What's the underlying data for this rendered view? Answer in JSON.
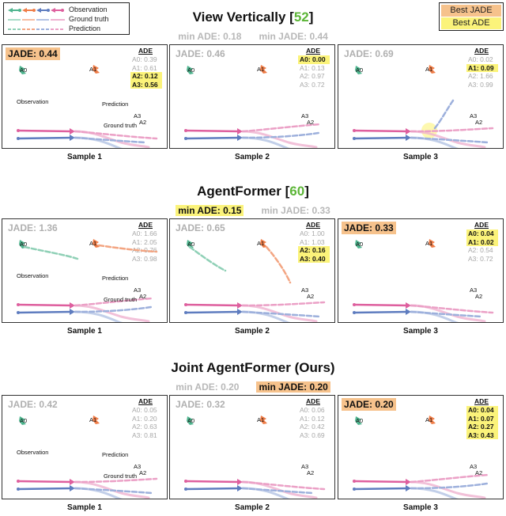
{
  "legend": {
    "observation": "Observation",
    "ground_truth": "Ground truth",
    "prediction": "Prediction"
  },
  "best_box": {
    "jade": "Best JADE",
    "ade": "Best ADE"
  },
  "colors": {
    "agent0": "#4fb58f",
    "agent1": "#ef7d48",
    "agent2": "#5e7cbf",
    "agent3": "#de5f9e",
    "highlight_ade": "#fbf37a",
    "highlight_jade": "#f6c28c",
    "green_number": "#5cb537"
  },
  "sections": [
    {
      "title": "View Vertically [",
      "number": "52",
      "bracket": "]",
      "min_ade": "min ADE: 0.18",
      "min_jade": "min JADE: 0.44",
      "samples": [
        {
          "label": "Sample 1",
          "jade": "JADE: 0.44",
          "jade_best": true,
          "ade": [
            "A0: 0.39",
            "A1: 0.61",
            "A2: 0.12",
            "A3: 0.56"
          ],
          "ade_hl": [
            false,
            false,
            true,
            true
          ],
          "texts": {
            "obs": "Observation",
            "pred": "Prediction",
            "gt": "Ground truth"
          }
        },
        {
          "label": "Sample 2",
          "jade": "JADE: 0.46",
          "jade_best": false,
          "ade": [
            "A0: 0.00",
            "A1: 0.13",
            "A2: 0.97",
            "A3: 0.72"
          ],
          "ade_hl": [
            true,
            false,
            false,
            false
          ]
        },
        {
          "label": "Sample 3",
          "jade": "JADE: 0.69",
          "jade_best": false,
          "ade": [
            "A0: 0.02",
            "A1: 0.09",
            "A2: 1.66",
            "A3: 0.99"
          ],
          "ade_hl": [
            false,
            true,
            false,
            false
          ]
        }
      ]
    },
    {
      "title": "AgentFormer [",
      "number": "60",
      "bracket": "]",
      "min_ade": "min ADE: 0.15",
      "min_jade": "min JADE: 0.33",
      "samples": [
        {
          "label": "Sample 1",
          "jade": "JADE: 1.36",
          "jade_best": false,
          "ade": [
            "A0: 1.66",
            "A1: 2.05",
            "A2: 0.76",
            "A3: 0.98"
          ],
          "ade_hl": [
            false,
            false,
            false,
            false
          ],
          "texts": {
            "obs": "Observation",
            "pred": "Prediction",
            "gt": "Ground truth"
          }
        },
        {
          "label": "Sample 2",
          "jade": "JADE: 0.65",
          "jade_best": false,
          "ade": [
            "A0: 1.00",
            "A1: 1.03",
            "A2: 0.16",
            "A3: 0.40"
          ],
          "ade_hl": [
            false,
            false,
            true,
            true
          ]
        },
        {
          "label": "Sample 3",
          "jade": "JADE: 0.33",
          "jade_best": true,
          "ade": [
            "A0: 0.04",
            "A1: 0.02",
            "A2: 0.54",
            "A3: 0.72"
          ],
          "ade_hl": [
            true,
            true,
            false,
            false
          ]
        }
      ]
    },
    {
      "title": "Joint AgentFormer (Ours)",
      "number": "",
      "bracket": "",
      "min_ade": "min ADE: 0.20",
      "min_jade": "min JADE: 0.20",
      "samples": [
        {
          "label": "Sample 1",
          "jade": "JADE: 0.42",
          "jade_best": false,
          "ade": [
            "A0: 0.05",
            "A1: 0.20",
            "A2: 0.63",
            "A3: 0.81"
          ],
          "ade_hl": [
            false,
            false,
            false,
            false
          ],
          "texts": {
            "obs": "Observation",
            "pred": "Prediction",
            "gt": "Ground truth"
          }
        },
        {
          "label": "Sample 2",
          "jade": "JADE: 0.32",
          "jade_best": false,
          "ade": [
            "A0: 0.06",
            "A1: 0.12",
            "A2: 0.42",
            "A3: 0.69"
          ],
          "ade_hl": [
            false,
            false,
            false,
            false
          ]
        },
        {
          "label": "Sample 3",
          "jade": "JADE: 0.20",
          "jade_best": true,
          "ade": [
            "A0: 0.04",
            "A1: 0.07",
            "A2: 0.27",
            "A3: 0.43"
          ],
          "ade_hl": [
            true,
            true,
            true,
            true
          ]
        }
      ]
    }
  ],
  "agent_labels": {
    "a0": "A0",
    "a1": "A1",
    "a2": "A2",
    "a3": "A3"
  }
}
